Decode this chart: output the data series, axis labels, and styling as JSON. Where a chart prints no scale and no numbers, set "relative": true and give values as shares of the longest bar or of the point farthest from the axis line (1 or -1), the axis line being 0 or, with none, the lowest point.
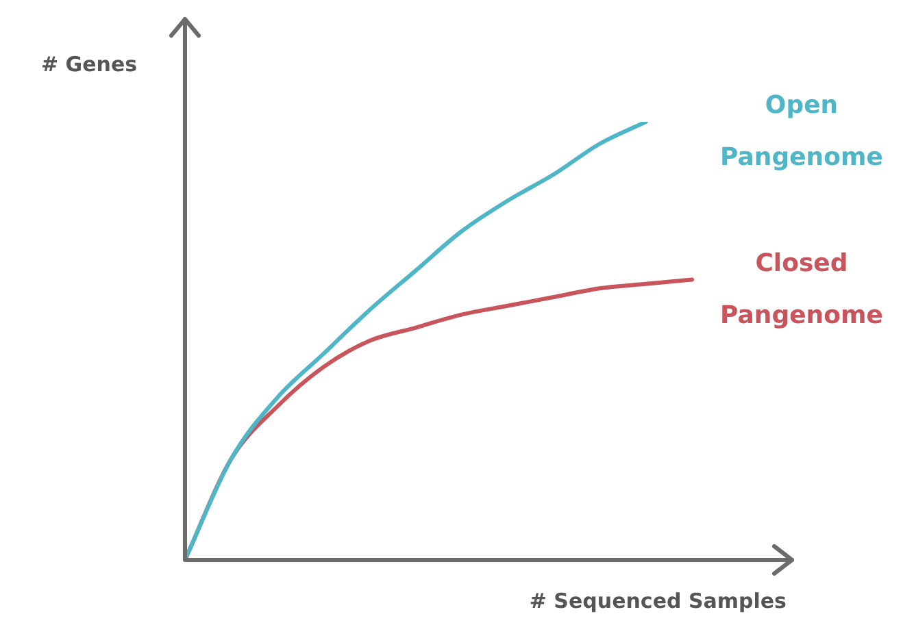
{
  "chart_data": {
    "type": "line",
    "xlabel": "# Sequenced Samples",
    "ylabel": "# Genes",
    "relative": true,
    "legend": false,
    "marker": "none",
    "line_style": "solid",
    "categories": [
      null,
      null,
      null,
      null,
      null,
      null,
      null,
      null,
      null,
      null,
      null,
      null
    ],
    "series": [
      {
        "name": "Open Pangenome",
        "color": "#4fb6c8",
        "values": [
          0,
          0.23,
          0.37,
          0.47,
          0.57,
          0.66,
          0.75,
          0.82,
          0.88,
          0.95,
          1,
          null
        ]
      },
      {
        "name": "Closed Pangenome",
        "color": "#c8555b",
        "values": [
          0,
          0.23,
          0.35,
          0.44,
          0.5,
          0.53,
          0.56,
          0.58,
          0.6,
          0.62,
          0.63,
          0.64
        ]
      }
    ]
  }
}
